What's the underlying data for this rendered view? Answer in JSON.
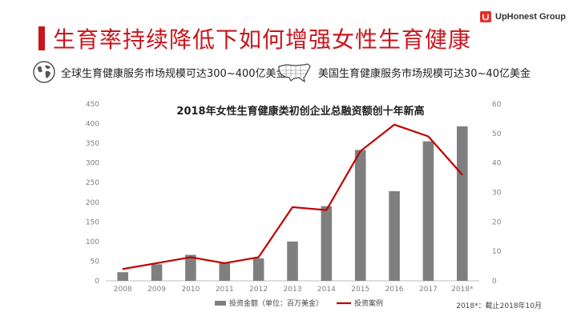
{
  "header": {
    "title": "生育率持续降低下如何增强女性生育健康",
    "brand": "UpHonest Group"
  },
  "facts": [
    {
      "icon": "globe-icon",
      "text": "全球生育健康服务市场规模可达300~400亿美金"
    },
    {
      "icon": "us-map-icon",
      "text": "美国生育健康服务市场规模可达30~40亿美金"
    }
  ],
  "colors": {
    "accent": "#c8161d",
    "bar": "#7f7f7f",
    "line": "#c00000"
  },
  "chart_data": {
    "type": "bar",
    "title": "2018年女性生育健康类初创企业总融资额创十年新高",
    "categories": [
      "2008",
      "2009",
      "2010",
      "2011",
      "2012",
      "2013",
      "2014",
      "2015",
      "2016",
      "2017",
      "2018*"
    ],
    "series": [
      {
        "name": "投资金额（单位：百万美金）",
        "type": "bar",
        "axis": "left",
        "values": [
          22,
          42,
          66,
          47,
          57,
          100,
          190,
          333,
          228,
          355,
          393
        ]
      },
      {
        "name": "投资案例",
        "type": "line",
        "axis": "right",
        "values": [
          4,
          6,
          8,
          6,
          8,
          25,
          24,
          44,
          53,
          49,
          36
        ]
      }
    ],
    "ylim_left": [
      0,
      450
    ],
    "yticks_left": [
      "0",
      "50",
      "100",
      "150",
      "200",
      "250",
      "300",
      "350",
      "400",
      "450"
    ],
    "ylim_right": [
      0,
      60
    ],
    "yticks_right": [
      "0",
      "10",
      "20",
      "30",
      "40",
      "50",
      "60"
    ],
    "grid": false,
    "legend_position": "bottom",
    "footnote": "2018*：截止2018年10月"
  }
}
